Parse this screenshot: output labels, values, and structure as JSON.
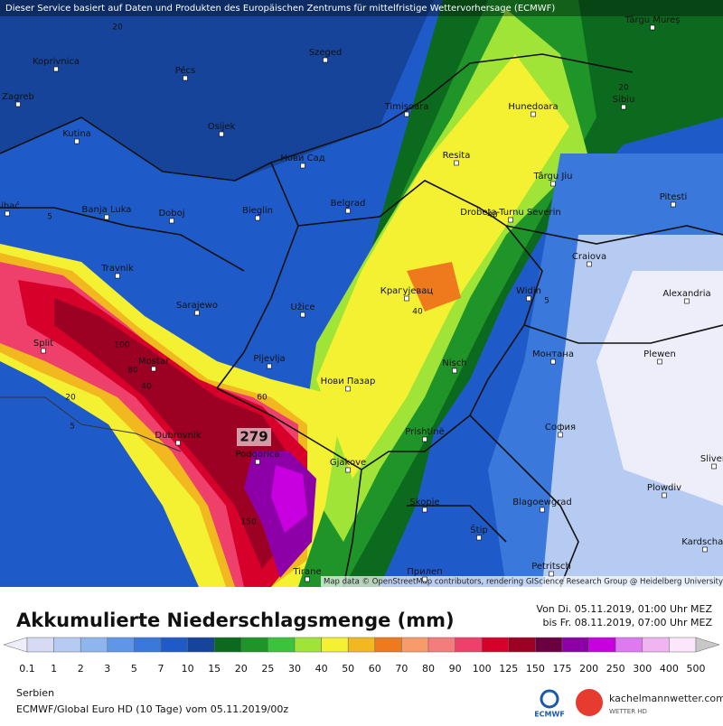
{
  "header": {
    "notice": "Dieser Service basiert auf Daten und Produkten des Europäischen Zentrums für mittelfristige Wettervorhersage (ECMWF)"
  },
  "map": {
    "cities": [
      "Koprivnica",
      "Pécs",
      "Szeged",
      "Zagreb",
      "Kutina",
      "Osijek",
      "Timișoara",
      "Hunedoara",
      "Sibiu",
      "Târgu Mureș",
      "Нови Сад",
      "Resita",
      "Târgu Jiu",
      "Bihać",
      "Banja Luka",
      "Doboj",
      "Bieglin",
      "Belgrad",
      "Drobeta-Turnu Severin",
      "Pitesti",
      "Travnik",
      "Craiova",
      "Sarajewo",
      "Užice",
      "Крагујевац",
      "Widin",
      "Alexandria",
      "Split",
      "Mostar",
      "Pljevlja",
      "Nisch",
      "Монтана",
      "Plewen",
      "Нови Пазар",
      "Prishtinë",
      "София",
      "Dubrovnik",
      "Podgorica",
      "Gjakove",
      "Sliven",
      "Plowdiv",
      "Skopje",
      "Blagoewgrad",
      "Štip",
      "Kardschali",
      "Petritsch",
      "Tirane",
      "Прилеп"
    ],
    "max_label": "279",
    "contour_labels": [
      "20",
      "20",
      "5",
      "40",
      "40",
      "5",
      "100",
      "80",
      "40",
      "60",
      "20",
      "5",
      "150"
    ],
    "attribution": "Map data © OpenStreetMap contributors, rendering GIScience Research Group @ Heidelberg University"
  },
  "title": "Akkumulierte Niederschlagsmenge (mm)",
  "period": [
    "Von Di. 05.11.2019, 01:00 Uhr MEZ",
    "bis Fr. 08.11.2019, 07:00 Uhr MEZ"
  ],
  "legend": {
    "labels": [
      "0.1",
      "1",
      "2",
      "3",
      "5",
      "7",
      "10",
      "15",
      "20",
      "25",
      "30",
      "40",
      "50",
      "60",
      "70",
      "80",
      "90",
      "100",
      "125",
      "150",
      "175",
      "200",
      "250",
      "300",
      "400",
      "500"
    ],
    "colors": [
      "#eeeefa",
      "#d6daf2",
      "#b6cbf2",
      "#8fb5ef",
      "#5f97e6",
      "#3a78dc",
      "#1f5bc8",
      "#15449a",
      "#0c6a1f",
      "#1e9429",
      "#3cc33c",
      "#9fe436",
      "#f4f032",
      "#f2b81f",
      "#ef7a1e",
      "#f59c6a",
      "#f57c7c",
      "#ef3f6b",
      "#d6002a",
      "#9c0022",
      "#6a0040",
      "#8d00a8",
      "#c800e0",
      "#dd7af0",
      "#f0b4f0",
      "#fbe6fb",
      "#c8c8c8"
    ]
  },
  "footer": {
    "region": "Serbien",
    "model": "ECMWF/Global Euro HD (10 Tage) vom  05.11.2019/00z",
    "ecmwf": "ECMWF",
    "site": "kachelmannwetter.com",
    "site_sub": "WETTER HD"
  }
}
